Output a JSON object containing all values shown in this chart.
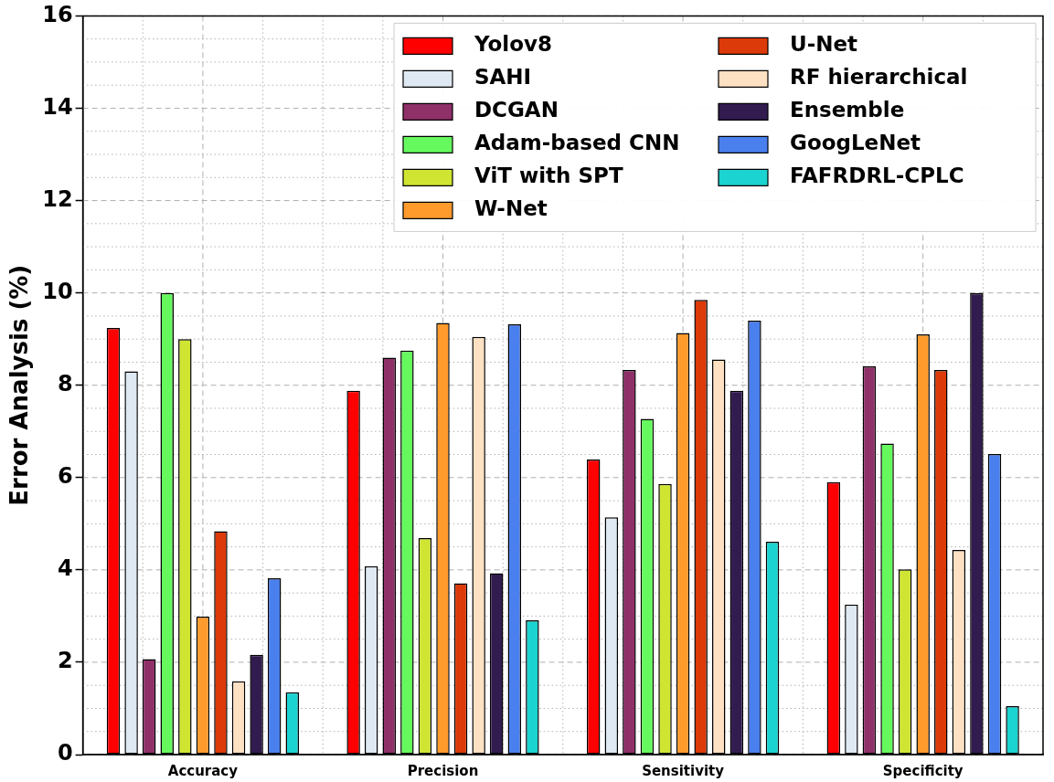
{
  "chart_data": {
    "type": "bar",
    "ylabel": "Error Analysis (%)",
    "categories": [
      "Accuracy",
      "Precision",
      "Sensitivity",
      "Specificity"
    ],
    "ylim": [
      0,
      16
    ],
    "yticks": [
      0,
      2,
      4,
      6,
      8,
      10,
      12,
      14,
      16
    ],
    "grid": true,
    "legend": "top right",
    "series": [
      {
        "name": "Yolov8",
        "color": "#ff0000",
        "values": [
          9.24,
          7.88,
          6.39,
          5.9
        ]
      },
      {
        "name": "SAHI",
        "color": "#dfe9f3",
        "values": [
          8.3,
          4.08,
          5.14,
          3.25
        ]
      },
      {
        "name": "DCGAN",
        "color": "#8f3068",
        "values": [
          2.07,
          8.6,
          8.33,
          8.41
        ]
      },
      {
        "name": "Adam-based CNN",
        "color": "#66f95e",
        "values": [
          10.0,
          8.75,
          7.27,
          6.74
        ]
      },
      {
        "name": "ViT with SPT",
        "color": "#d0e532",
        "values": [
          9.0,
          4.69,
          5.86,
          4.01
        ]
      },
      {
        "name": "W-Net",
        "color": "#ff9b2d",
        "values": [
          2.99,
          9.35,
          9.13,
          9.1
        ]
      },
      {
        "name": "U-Net",
        "color": "#dc3a08",
        "values": [
          4.84,
          3.71,
          9.85,
          8.33
        ]
      },
      {
        "name": "RF hierarchical",
        "color": "#fee0c2",
        "values": [
          1.59,
          9.05,
          8.56,
          4.43
        ]
      },
      {
        "name": "Ensemble",
        "color": "#321b4f",
        "values": [
          2.16,
          3.93,
          7.88,
          10.0
        ]
      },
      {
        "name": "GoogLeNet",
        "color": "#4a7fee",
        "values": [
          3.82,
          9.32,
          9.4,
          6.51
        ]
      },
      {
        "name": "FAFRDRL-CPLC",
        "color": "#1bd3d0",
        "values": [
          1.35,
          2.91,
          4.61,
          1.05
        ]
      }
    ]
  }
}
